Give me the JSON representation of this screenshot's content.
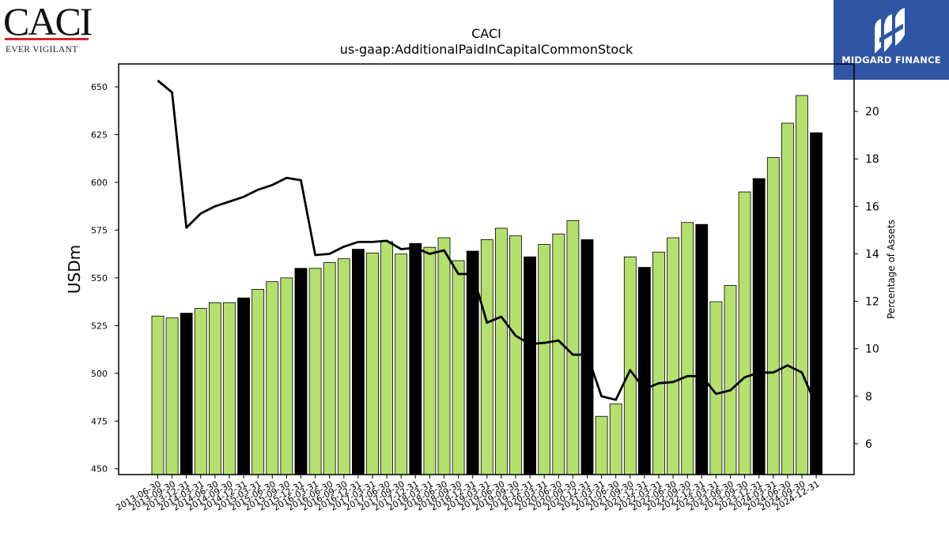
{
  "logos": {
    "left_brand": "CACI",
    "left_tagline": "EVER VIGILANT",
    "right_brand": "MIDGARD FINANCE"
  },
  "colors": {
    "bar_regular": "#b5e06e",
    "bar_highlight": "#000000",
    "line": "#000000",
    "logo_red": "#d9242b",
    "midgard_blue": "#2f55a4"
  },
  "chart_data": {
    "type": "bar",
    "title": "CACI",
    "subtitle": "us-gaap:AdditionalPaidInCapitalCommonStock",
    "ylabel": "USDm",
    "y2label": "Percentage of Assets",
    "ylim": [
      447,
      662
    ],
    "y2lim": [
      4.7,
      22.0
    ],
    "yticks": [
      450,
      475,
      500,
      525,
      550,
      575,
      600,
      625,
      650
    ],
    "y2ticks": [
      6,
      8,
      10,
      12,
      14,
      16,
      18,
      20
    ],
    "grid": false,
    "legend": "none",
    "categories": [
      "2013-06-30",
      "2013-09-30",
      "2013-12-31",
      "2014-03-31",
      "2014-06-30",
      "2014-09-30",
      "2014-12-31",
      "2015-03-31",
      "2015-06-30",
      "2015-09-30",
      "2015-12-31",
      "2016-03-31",
      "2016-06-30",
      "2016-09-30",
      "2016-12-31",
      "2017-03-31",
      "2017-06-30",
      "2017-09-30",
      "2017-12-31",
      "2018-03-31",
      "2018-06-30",
      "2018-09-30",
      "2018-12-31",
      "2019-03-31",
      "2019-06-30",
      "2019-09-30",
      "2019-12-31",
      "2020-03-31",
      "2020-06-30",
      "2020-09-30",
      "2020-12-31",
      "2021-03-31",
      "2021-06-30",
      "2021-09-30",
      "2021-12-31",
      "2022-03-31",
      "2022-06-30",
      "2022-09-30",
      "2022-12-31",
      "2023-03-31",
      "2023-06-30",
      "2023-09-30",
      "2023-12-31",
      "2024-03-31",
      "2024-06-30",
      "2024-09-30",
      "2024-12-31"
    ],
    "series": [
      {
        "kind": "bar",
        "axis": "left",
        "values": [
          530,
          529,
          531.5,
          534,
          537,
          537,
          539.5,
          544,
          548,
          550,
          555,
          555,
          558,
          560,
          565,
          563,
          569,
          562.5,
          568,
          566,
          571,
          559,
          564,
          570,
          576,
          572,
          561,
          567.5,
          573,
          580,
          570,
          477.5,
          484,
          561,
          555.5,
          563.5,
          571,
          579,
          578,
          537.5,
          546,
          595,
          602,
          613,
          631,
          645.5,
          626
        ],
        "highlight_indices": [
          2,
          6,
          10,
          14,
          18,
          22,
          26,
          30,
          34,
          38,
          42,
          46
        ]
      },
      {
        "kind": "line",
        "axis": "right",
        "values": [
          21.3,
          20.8,
          15.1,
          15.7,
          16.0,
          16.2,
          16.4,
          16.7,
          16.9,
          17.2,
          17.1,
          13.95,
          14.0,
          14.3,
          14.5,
          14.5,
          14.55,
          14.2,
          14.25,
          14.0,
          14.15,
          13.15,
          13.15,
          11.1,
          11.35,
          10.55,
          10.2,
          10.25,
          10.35,
          9.75,
          9.75,
          8.0,
          7.85,
          9.1,
          8.3,
          8.55,
          8.6,
          8.85,
          8.85,
          8.1,
          8.25,
          8.8,
          9.0,
          9.0,
          9.3,
          9.0,
          7.6
        ]
      }
    ]
  }
}
